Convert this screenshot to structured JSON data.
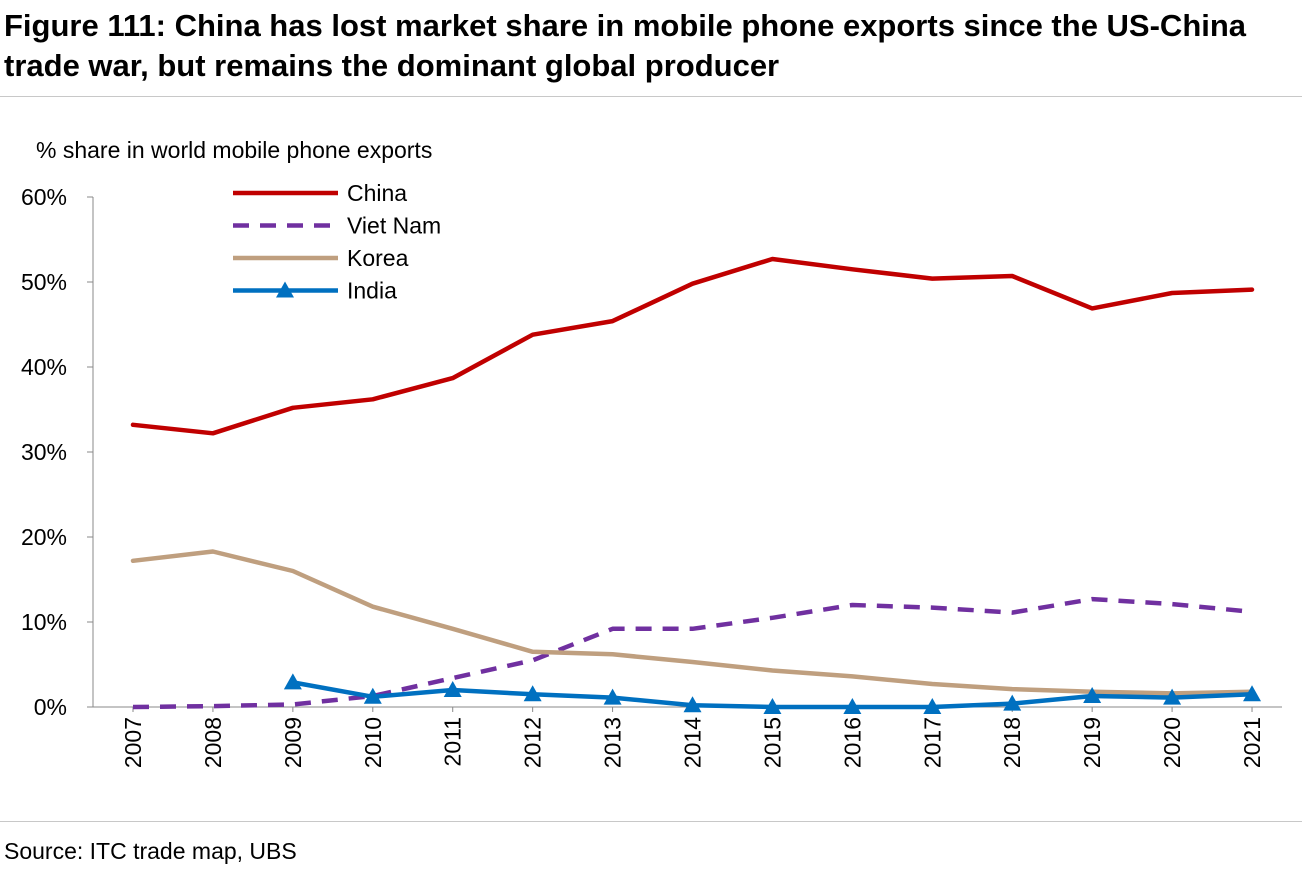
{
  "figure": {
    "title": "Figure 111: China has lost market share in mobile phone exports since the US-China trade war, but remains the dominant global producer",
    "source": "Source: ITC trade map, UBS"
  },
  "chart_data": {
    "type": "line",
    "ylabel": "% share in world mobile phone exports",
    "xlabel": "",
    "ylim": [
      0,
      60
    ],
    "y_ticks": [
      "0%",
      "10%",
      "20%",
      "30%",
      "40%",
      "50%",
      "60%"
    ],
    "y_tick_values": [
      0,
      10,
      20,
      30,
      40,
      50,
      60
    ],
    "grid": false,
    "legend_position": "top-left",
    "x": [
      "2007",
      "2008",
      "2009",
      "2010",
      "2011",
      "2012",
      "2013",
      "2014",
      "2015",
      "2016",
      "2017",
      "2018",
      "2019",
      "2020",
      "2021"
    ],
    "series": [
      {
        "name": "China",
        "color": "#c00000",
        "style": "solid",
        "marker": "none",
        "values": [
          33.2,
          32.2,
          35.2,
          36.2,
          38.7,
          43.8,
          45.4,
          49.8,
          52.7,
          51.5,
          50.4,
          50.7,
          46.9,
          48.7,
          49.1
        ]
      },
      {
        "name": "Viet Nam",
        "color": "#7030a0",
        "style": "dashed",
        "marker": "none",
        "values": [
          0.0,
          0.1,
          0.3,
          1.3,
          3.4,
          5.5,
          9.2,
          9.2,
          10.5,
          12.0,
          11.7,
          11.1,
          12.7,
          12.1,
          11.2
        ]
      },
      {
        "name": "Korea",
        "color": "#bf9f7f",
        "style": "solid",
        "marker": "none",
        "values": [
          17.2,
          18.3,
          16.0,
          11.8,
          9.2,
          6.5,
          6.2,
          5.3,
          4.3,
          3.6,
          2.7,
          2.1,
          1.8,
          1.6,
          1.8
        ]
      },
      {
        "name": "India",
        "color": "#0070c0",
        "style": "solid",
        "marker": "triangle",
        "values": [
          null,
          null,
          2.9,
          1.2,
          2.0,
          1.5,
          1.1,
          0.2,
          0.0,
          0.0,
          0.0,
          0.4,
          1.3,
          1.1,
          1.5
        ]
      }
    ]
  }
}
